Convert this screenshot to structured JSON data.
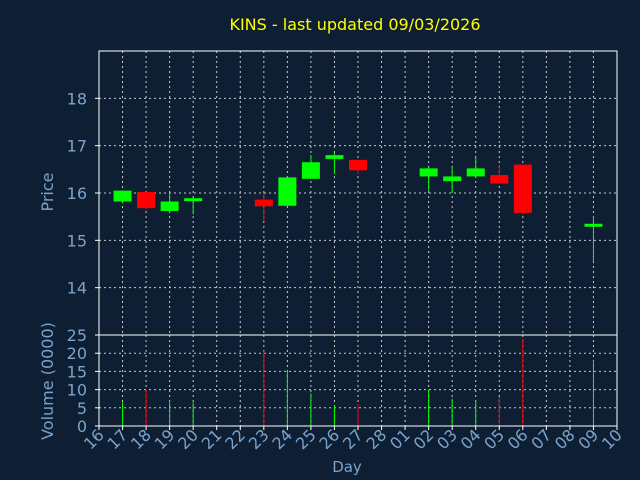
{
  "title": "KINS - last updated 09/03/2026",
  "colors": {
    "background": "#0f1f33",
    "title": "#ffff00",
    "axis_label": "#7aa3cc",
    "frame": "#ffffff",
    "grid": "#c8c8c8",
    "up": "#00ff00",
    "down": "#ff0000"
  },
  "chart_data": [
    {
      "type": "candlestick",
      "ylabel": "Price",
      "ylim": [
        13.0,
        19.0
      ],
      "yticks": [
        14,
        15,
        16,
        17,
        18
      ],
      "grid": true,
      "x_ticks": [
        "16",
        "17",
        "18",
        "19",
        "20",
        "21",
        "22",
        "23",
        "24",
        "25",
        "26",
        "27",
        "28",
        "01",
        "02",
        "03",
        "04",
        "05",
        "06",
        "07",
        "08",
        "09",
        "10"
      ],
      "candles": [
        {
          "day": "17",
          "open": 15.82,
          "high": 16.05,
          "low": 15.78,
          "close": 16.05
        },
        {
          "day": "18",
          "open": 16.02,
          "high": 16.02,
          "low": 15.65,
          "close": 15.68
        },
        {
          "day": "19",
          "open": 15.62,
          "high": 16.0,
          "low": 15.6,
          "close": 15.82
        },
        {
          "day": "20",
          "open": 15.85,
          "high": 15.9,
          "low": 15.55,
          "close": 15.89
        },
        {
          "day": "23",
          "open": 15.86,
          "high": 16.0,
          "low": 15.4,
          "close": 15.72
        },
        {
          "day": "24",
          "open": 15.73,
          "high": 16.33,
          "low": 15.73,
          "close": 16.33
        },
        {
          "day": "25",
          "open": 16.3,
          "high": 16.8,
          "low": 16.3,
          "close": 16.65
        },
        {
          "day": "26",
          "open": 16.72,
          "high": 16.85,
          "low": 16.4,
          "close": 16.8
        },
        {
          "day": "27",
          "open": 16.7,
          "high": 16.7,
          "low": 16.4,
          "close": 16.48
        },
        {
          "day": "02",
          "open": 16.35,
          "high": 16.55,
          "low": 16.05,
          "close": 16.52
        },
        {
          "day": "03",
          "open": 16.25,
          "high": 16.55,
          "low": 16.0,
          "close": 16.35
        },
        {
          "day": "04",
          "open": 16.35,
          "high": 16.75,
          "low": 16.35,
          "close": 16.52
        },
        {
          "day": "05",
          "open": 16.38,
          "high": 16.6,
          "low": 16.2,
          "close": 16.2
        },
        {
          "day": "06",
          "open": 16.6,
          "high": 16.6,
          "low": 15.55,
          "close": 15.58
        },
        {
          "day": "09",
          "open": 15.3,
          "high": 15.5,
          "low": 14.55,
          "close": 15.35
        }
      ]
    },
    {
      "type": "bar",
      "ylabel": "Volume (0000)",
      "xlabel": "Day",
      "ylim": [
        0,
        25
      ],
      "yticks": [
        0,
        5,
        10,
        15,
        20,
        25
      ],
      "grid": true,
      "bars": [
        {
          "day": "17",
          "value": 6.5,
          "direction": "up"
        },
        {
          "day": "18",
          "value": 10.0,
          "direction": "down"
        },
        {
          "day": "19",
          "value": 6.5,
          "direction": "up"
        },
        {
          "day": "20",
          "value": 6.5,
          "direction": "up"
        },
        {
          "day": "23",
          "value": 20.5,
          "direction": "down"
        },
        {
          "day": "24",
          "value": 15.0,
          "direction": "up"
        },
        {
          "day": "25",
          "value": 9.0,
          "direction": "up"
        },
        {
          "day": "26",
          "value": 5.5,
          "direction": "up"
        },
        {
          "day": "27",
          "value": 6.0,
          "direction": "down"
        },
        {
          "day": "02",
          "value": 10.0,
          "direction": "up"
        },
        {
          "day": "03",
          "value": 7.5,
          "direction": "up"
        },
        {
          "day": "04",
          "value": 7.0,
          "direction": "up"
        },
        {
          "day": "05",
          "value": 8.0,
          "direction": "down"
        },
        {
          "day": "06",
          "value": 24.0,
          "direction": "down"
        },
        {
          "day": "09",
          "value": 18.0,
          "direction": "up"
        }
      ]
    }
  ]
}
